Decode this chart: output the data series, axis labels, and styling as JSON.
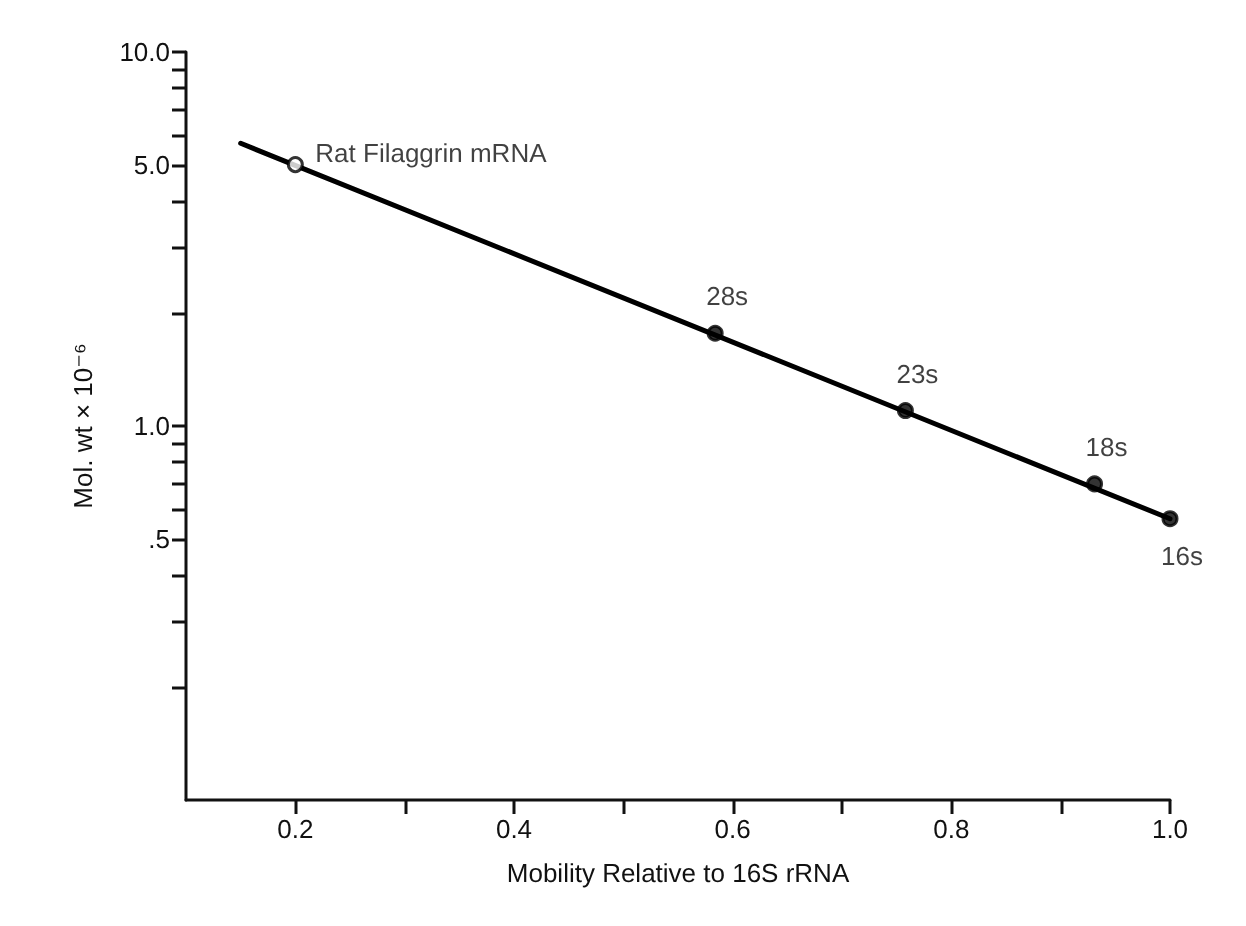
{
  "chart_data": {
    "type": "scatter",
    "xlabel": "Mobility Relative to 16S rRNA",
    "ylabel": "Mol. wt × 10⁻⁶",
    "log": "y",
    "xlim": [
      0.1,
      1.0
    ],
    "xticks": [
      0.2,
      {
        "value": 0.3,
        "label": null
      },
      0.4,
      {
        "value": 0.5,
        "label": null
      },
      0.6,
      {
        "value": 0.7,
        "label": null
      },
      0.8,
      {
        "value": 0.9,
        "label": null
      },
      {
        "value": 1.0,
        "label": "1.0"
      }
    ],
    "ylim": [
      0.1,
      10
    ],
    "yticks": [
      {
        "value": 0.2,
        "label": null
      },
      {
        "value": 0.3,
        "label": null
      },
      {
        "value": 0.4,
        "label": null
      },
      {
        "value": 0.5,
        "label": ".5"
      },
      {
        "value": 0.6,
        "label": null
      },
      {
        "value": 0.7,
        "label": null
      },
      {
        "value": 0.8,
        "label": null
      },
      {
        "value": 0.9,
        "label": null
      },
      {
        "value": 1,
        "label": "1.0"
      },
      {
        "value": 2,
        "label": null
      },
      {
        "value": 3,
        "label": null
      },
      {
        "value": 4,
        "label": null
      },
      {
        "value": 5,
        "label": "5.0"
      },
      {
        "value": 6,
        "label": null
      },
      {
        "value": 7,
        "label": null
      },
      {
        "value": 8,
        "label": null
      },
      {
        "value": 9,
        "label": null
      },
      {
        "value": 10,
        "label": "10.0"
      }
    ],
    "grid": false,
    "marker": "circle",
    "series": [
      {
        "type": "line",
        "marker": "none",
        "color": "#000000",
        "x": [
          0.15,
          1.0
        ],
        "values": [
          5.7,
          0.565
        ]
      },
      {
        "color": "#000000",
        "x": [
          0.584,
          0.758,
          0.931,
          1.0
        ],
        "values": [
          1.77,
          1.1,
          0.7,
          0.565
        ]
      },
      {
        "color": "#ffffff",
        "x": [
          0.2
        ],
        "values": [
          5.0
        ]
      }
    ],
    "annotations": [
      {
        "text": "Rat Filaggrin mRNA",
        "x": 0.2,
        "y": 5.0
      },
      {
        "text": "28s",
        "x": 0.584,
        "y": 1.77
      },
      {
        "text": "23s",
        "x": 0.758,
        "y": 1.1
      },
      {
        "text": "18s",
        "x": 0.931,
        "y": 0.7
      },
      {
        "text": "16s",
        "x": 1.0,
        "y": 0.565
      }
    ]
  }
}
